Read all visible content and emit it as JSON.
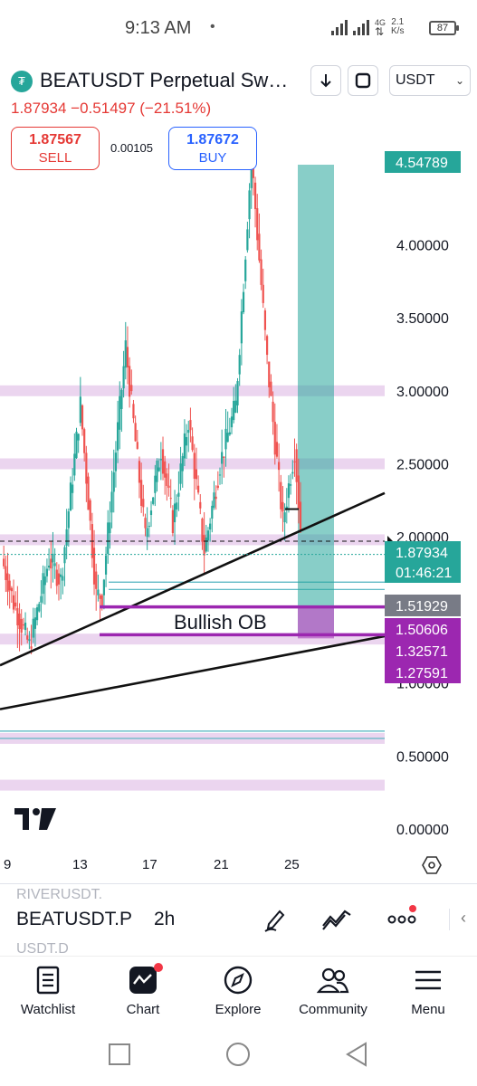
{
  "status_bar": {
    "time": "9:13 AM",
    "dot": "•",
    "network": "4G",
    "speed_value": "2.1",
    "speed_unit": "K/s",
    "battery": "87"
  },
  "header": {
    "symbol_icon": "tether-logo-icon",
    "title": "BEATUSDT Perpetual Sw…",
    "currency": "USDT",
    "price_change": "1.87934  −0.51497 (−21.51%)"
  },
  "order": {
    "sell_price": "1.87567",
    "sell_label": "SELL",
    "spread": "0.00105",
    "buy_price": "1.87672",
    "buy_label": "BUY"
  },
  "colors": {
    "up": "#26a69a",
    "down": "#ef5350",
    "sell": "#e53935",
    "buy": "#2962ff",
    "zone_purple": "#9c27b0",
    "zone_band": "#e1bee7",
    "target_box": "#26a69a"
  },
  "chart_data": {
    "type": "candlestick",
    "y_axis_ticks": [
      "4.00000",
      "3.50000",
      "3.00000",
      "2.50000",
      "2.00000",
      "0.50000",
      "0.00000"
    ],
    "ylim": [
      0,
      4.6
    ],
    "x_axis_ticks": [
      "9",
      "13",
      "17",
      "21",
      "25"
    ],
    "price_labels": [
      {
        "value": "4.54789",
        "color": "#26a69a"
      },
      {
        "value": "1.87934",
        "color": "#26a69a"
      },
      {
        "value": "01:46:21",
        "color": "#26a69a"
      },
      {
        "value": "1.51929",
        "color": "#787b86"
      },
      {
        "value": "1.50606",
        "color": "#9c27b0"
      },
      {
        "value": "1.32571",
        "color": "#9c27b0"
      },
      {
        "value": "1.27591",
        "color": "#9c27b0"
      }
    ],
    "annotation": "Bullish OB",
    "horizontal_bands": [
      3.0,
      2.5,
      1.98,
      1.3,
      0.62,
      0.3
    ],
    "current_price": 1.87934,
    "target_box": {
      "from": 1.32571,
      "to": 4.54789
    }
  },
  "toolbar": {
    "symbol": "BEATUSDT.P",
    "interval": "2h",
    "ghost_top": "RIVERUSDT.",
    "ghost_bottom": "USDT.D"
  },
  "nav": [
    {
      "label": "Watchlist",
      "icon": "watchlist-icon"
    },
    {
      "label": "Chart",
      "icon": "chart-icon"
    },
    {
      "label": "Explore",
      "icon": "compass-icon"
    },
    {
      "label": "Community",
      "icon": "community-icon"
    },
    {
      "label": "Menu",
      "icon": "menu-icon"
    }
  ]
}
